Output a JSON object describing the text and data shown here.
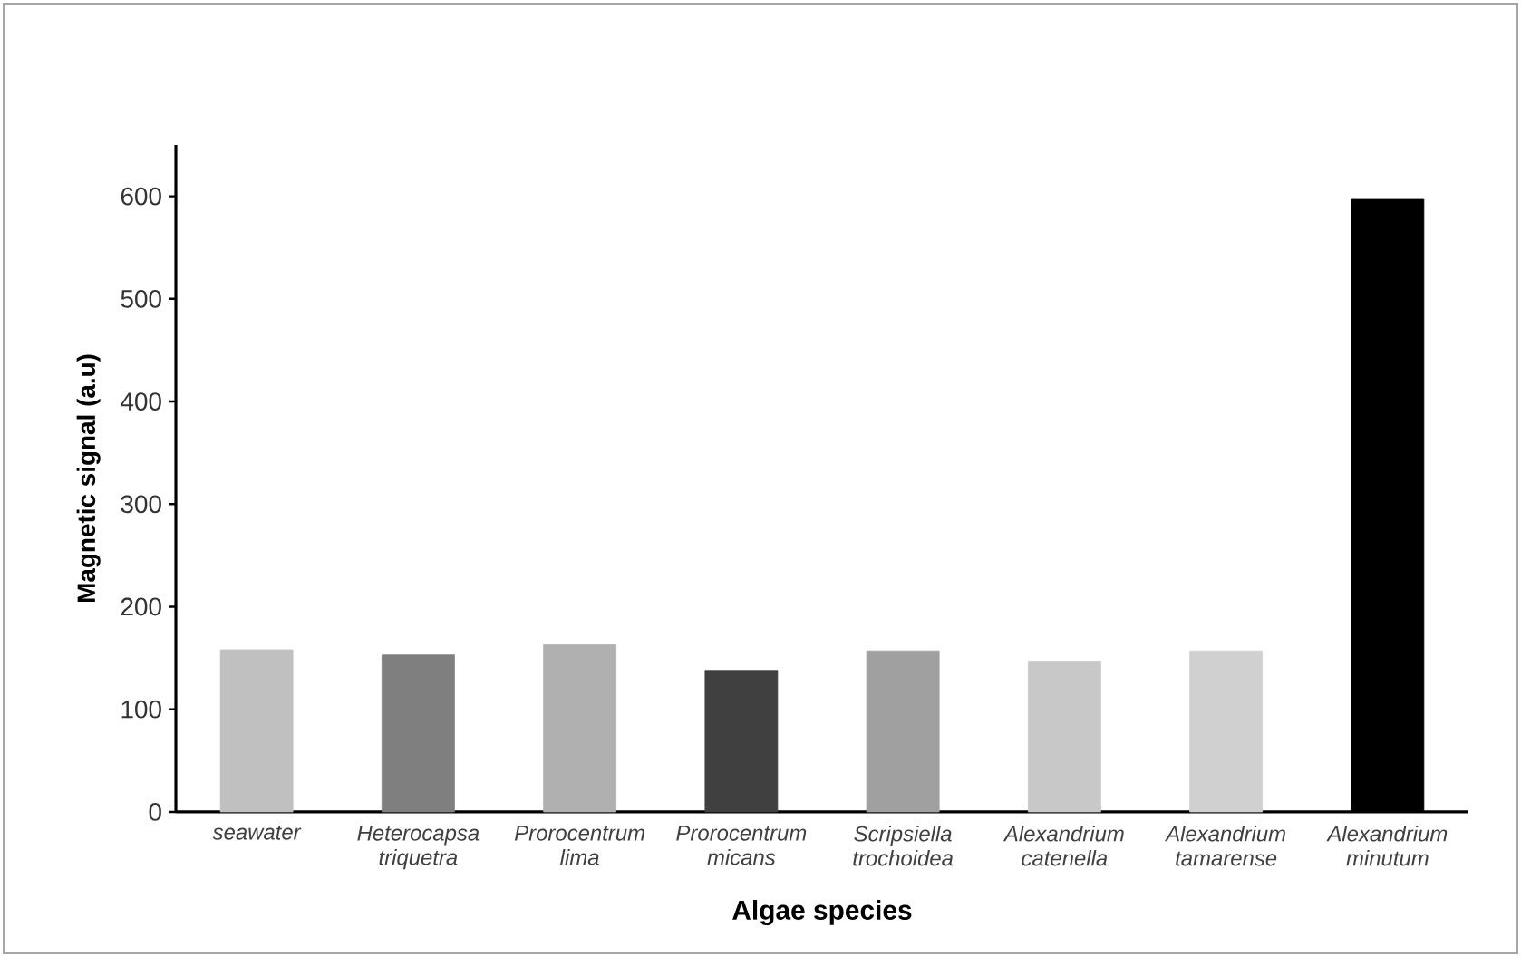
{
  "chart_data": {
    "type": "bar",
    "xlabel": "Algae species",
    "ylabel": "Magnetic signal (a.u)",
    "categories": [
      "seawater",
      "Heterocapsa triquetra",
      "Prorocentrum lima",
      "Prorocentrum micans",
      "Scripsiella trochoidea",
      "Alexandrium catenella",
      "Alexandrium tamarense",
      "Alexandrium minutum"
    ],
    "values": [
      158,
      153,
      163,
      138,
      157,
      147,
      157,
      597
    ],
    "colors": [
      "#c0c0c0",
      "#7f7f7f",
      "#b0b0b0",
      "#404040",
      "#a0a0a0",
      "#c8c8c8",
      "#d0d0d0",
      "#000000"
    ],
    "ylim": [
      0,
      650
    ],
    "yticks": [
      0,
      100,
      200,
      300,
      400,
      500,
      600
    ],
    "grid": false
  }
}
